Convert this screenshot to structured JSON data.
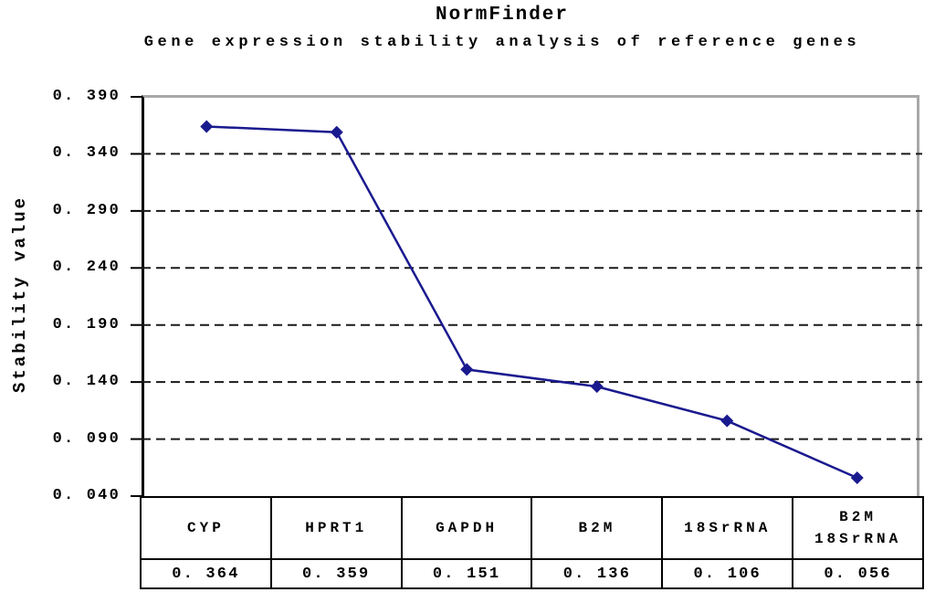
{
  "chart_data": {
    "type": "line",
    "title": "NormFinder",
    "subtitle": "Gene expression stability analysis of reference genes",
    "ylabel": "Stability value",
    "xlabel": "",
    "categories": [
      "CYP",
      "HPRT1",
      "GAPDH",
      "B2M",
      "18SrRNA",
      "B2M 18SrRNA"
    ],
    "category_lines": [
      [
        "CYP"
      ],
      [
        "HPRT1"
      ],
      [
        "GAPDH"
      ],
      [
        "B2M"
      ],
      [
        "18SrRNA"
      ],
      [
        "B2M",
        "18SrRNA"
      ]
    ],
    "values": [
      0.364,
      0.359,
      0.151,
      0.136,
      0.106,
      0.056
    ],
    "value_labels": [
      "0. 364",
      "0. 359",
      "0. 151",
      "0. 136",
      "0. 106",
      "0. 056"
    ],
    "y_ticks": [
      0.39,
      0.34,
      0.29,
      0.24,
      0.19,
      0.14,
      0.09,
      0.04
    ],
    "y_tick_labels": [
      "0. 390",
      "0. 340",
      "0. 290",
      "0. 240",
      "0. 190",
      "0. 140",
      "0. 090",
      "0. 040"
    ],
    "ylim": [
      0.04,
      0.39
    ],
    "y_step": 0.05,
    "grid": "horizontal-dashed",
    "legend": "none",
    "marker": "diamond",
    "colors": {
      "series": "#1a1a8f",
      "gridline": "#1a1a1a",
      "axis_black": "#000000",
      "axis_gray": "#a8a8a8",
      "text": "#000000",
      "background": "#ffffff"
    }
  }
}
